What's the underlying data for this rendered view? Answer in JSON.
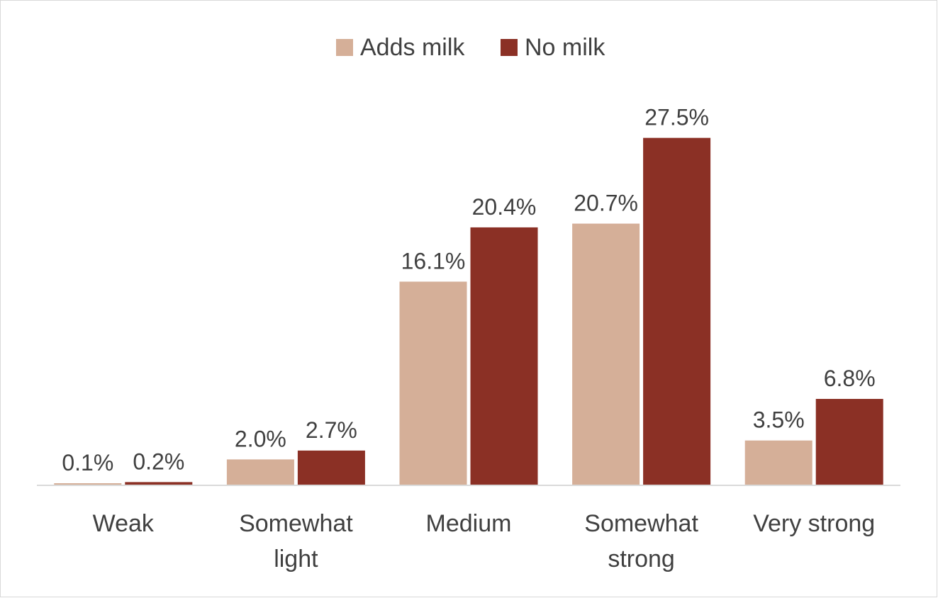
{
  "chart_data": {
    "type": "bar",
    "categories": [
      [
        "Weak"
      ],
      [
        "Somewhat",
        "light"
      ],
      [
        "Medium"
      ],
      [
        "Somewhat",
        "strong"
      ],
      [
        "Very strong"
      ]
    ],
    "series": [
      {
        "name": "Adds milk",
        "color": "#d5af98",
        "values": [
          0.1,
          2.0,
          16.1,
          20.7,
          3.5
        ],
        "labels": [
          "0.1%",
          "2.0%",
          "16.1%",
          "20.7%",
          "3.5%"
        ]
      },
      {
        "name": "No milk",
        "color": "#8b3025",
        "values": [
          0.2,
          2.7,
          20.4,
          27.5,
          6.8
        ],
        "labels": [
          "0.2%",
          "2.7%",
          "20.4%",
          "27.5%",
          "6.8%"
        ]
      }
    ],
    "ylim": [
      0,
      34.5
    ],
    "grid": false,
    "legend": "top-center",
    "title": "",
    "xlabel": "",
    "ylabel": ""
  }
}
